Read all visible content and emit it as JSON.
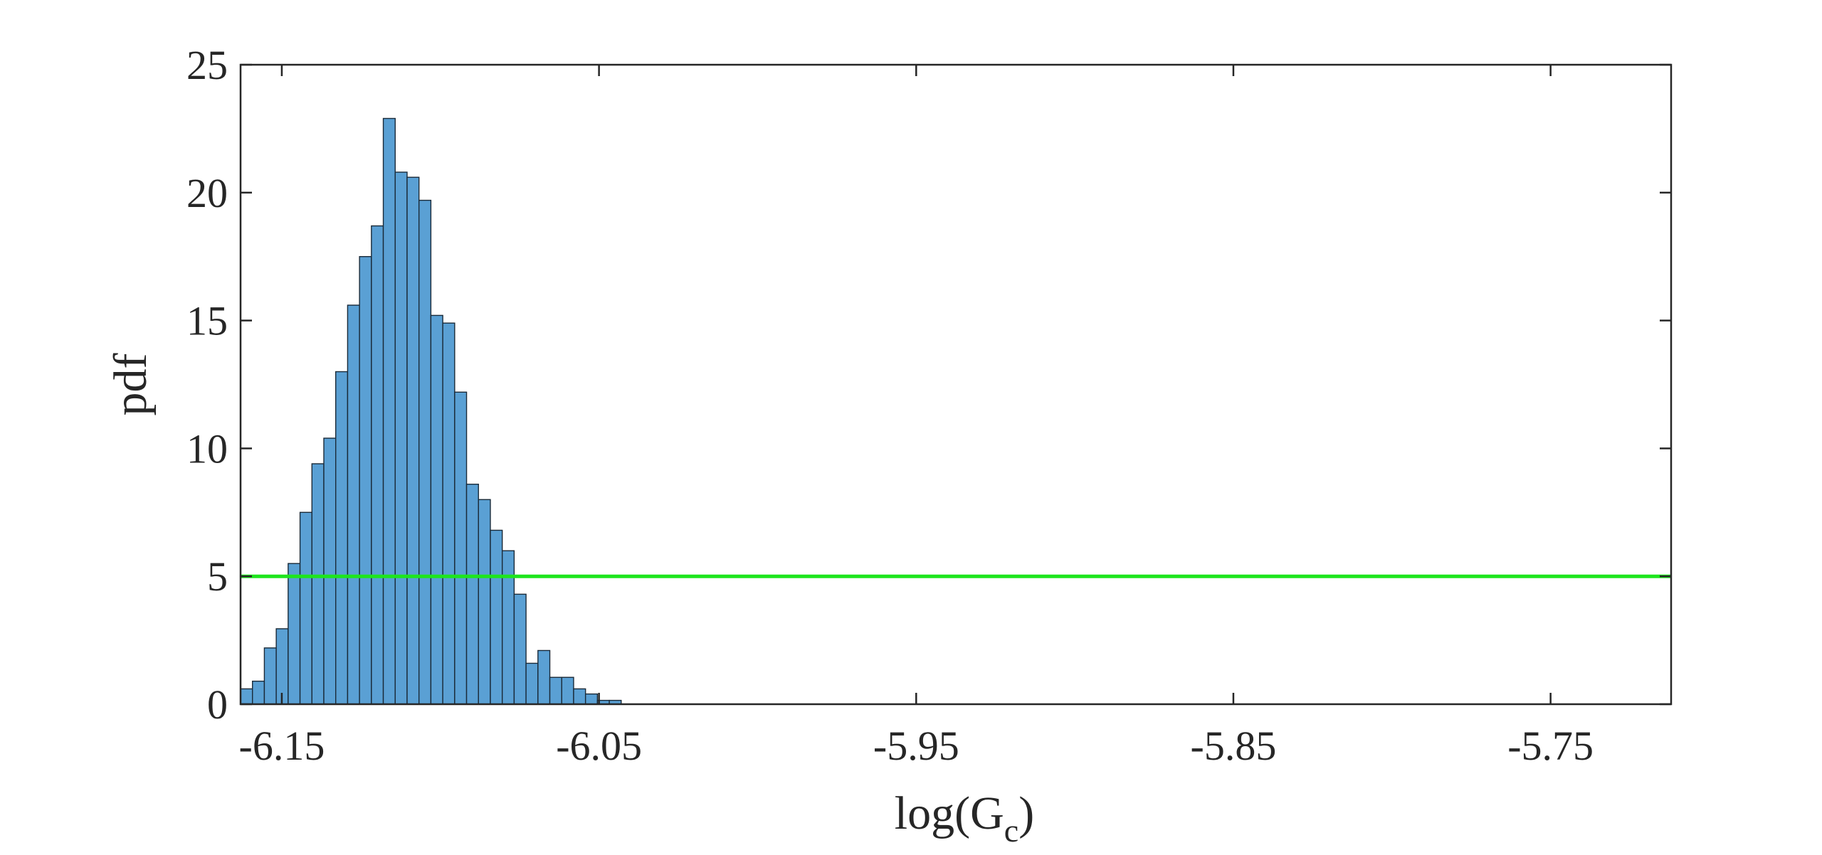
{
  "chart_data": {
    "type": "bar",
    "subtype": "histogram",
    "xlabel": "log(G",
    "xlabel_subscript": "c",
    "xlabel_close": ")",
    "ylabel": "pdf",
    "xlim": [
      -6.163,
      -5.712
    ],
    "ylim": [
      0,
      25
    ],
    "xticks": [
      -6.15,
      -6.05,
      -5.95,
      -5.85,
      -5.75
    ],
    "xtick_labels": [
      "-6.15",
      "-6.05",
      "-5.95",
      "-5.85",
      "-5.75"
    ],
    "yticks": [
      0,
      5,
      10,
      15,
      20,
      25
    ],
    "ytick_labels": [
      "0",
      "5",
      "10",
      "15",
      "20",
      "25"
    ],
    "grid": false,
    "bin_width": 0.00375,
    "bin_starts": [
      -6.163,
      -6.15925,
      -6.1555,
      -6.15175,
      -6.148,
      -6.14425,
      -6.1405,
      -6.13675,
      -6.133,
      -6.12925,
      -6.1255,
      -6.12175,
      -6.118,
      -6.11425,
      -6.1105,
      -6.10675,
      -6.103,
      -6.09925,
      -6.0955,
      -6.09175,
      -6.088,
      -6.08425,
      -6.0805,
      -6.07675,
      -6.073,
      -6.06925,
      -6.0655,
      -6.06175,
      -6.058,
      -6.05425,
      -6.0505,
      -6.04675
    ],
    "values": [
      0.6,
      0.9,
      2.2,
      2.95,
      5.5,
      7.5,
      9.4,
      10.4,
      13.0,
      15.6,
      17.5,
      18.7,
      22.9,
      20.8,
      20.6,
      19.7,
      15.2,
      14.9,
      12.2,
      8.6,
      8.0,
      6.8,
      6.0,
      4.3,
      1.6,
      2.1,
      1.05,
      1.05,
      0.6,
      0.4,
      0.15,
      0.15
    ],
    "reference_line": {
      "y": 5,
      "color": "#1ee51e"
    },
    "bar_fill": "#5aa0d4",
    "bar_edge": "#1a2a38"
  }
}
